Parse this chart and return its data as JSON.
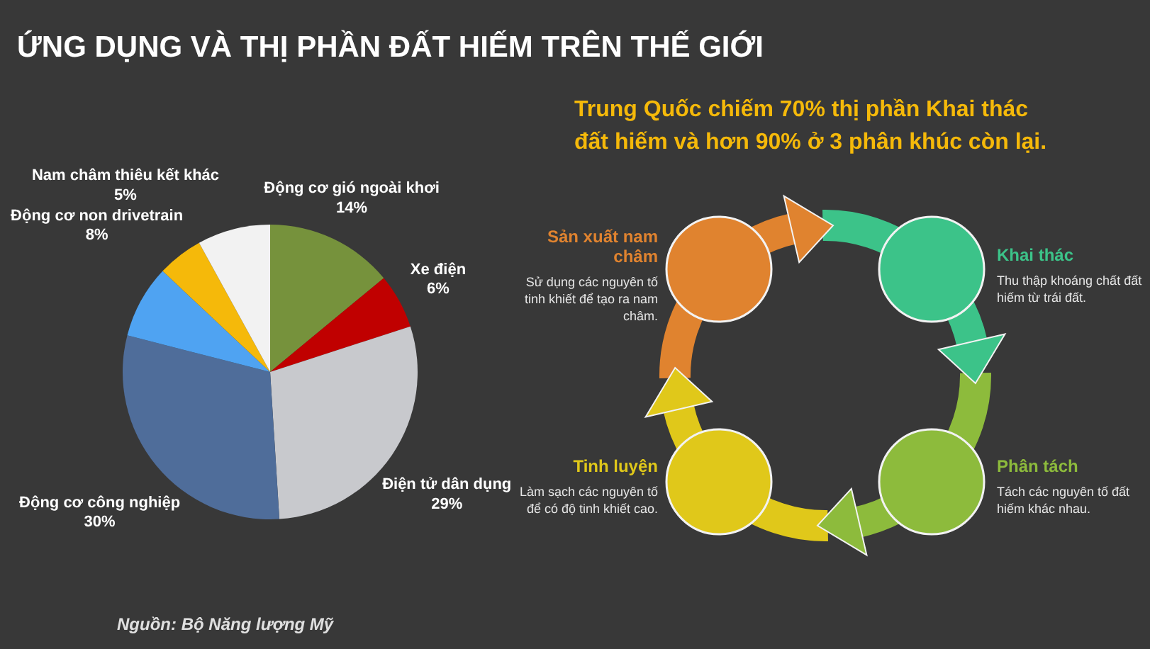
{
  "chart_data": [
    {
      "type": "pie",
      "title": "ỨNG DỤNG VÀ THỊ PHẦN ĐẤT HIẾM TRÊN THẾ GIỚI",
      "categories": [
        "Động cơ gió ngoài khơi",
        "Xe điện",
        "Điện tử dân dụng",
        "Động cơ công nghiệp",
        "Động cơ non drivetrain",
        "Nam châm thiêu kết khác",
        null
      ],
      "values": [
        14,
        6,
        29,
        30,
        8,
        5,
        8
      ],
      "colors": [
        "#76923c",
        "#c00000",
        "#c8c9cd",
        "#4f6d9a",
        "#4fa3f2",
        "#f5b90a",
        "#f2f2f2"
      ],
      "value_labels": [
        "14%",
        "6%",
        "29%",
        "30%",
        "8%",
        "5%",
        null
      ],
      "annotations": [
        "Nguồn: Bộ Năng lượng Mỹ"
      ]
    },
    {
      "type": "other",
      "title": "Trung Quốc chiếm 70% thị phần Khai thác đất hiếm và hơn 90% ở 3 phân khúc còn lại.",
      "categories": [
        "Khai thác",
        "Phân tách",
        "Tinh luyện",
        "Sản xuất nam châm"
      ],
      "annotations": [
        "Thu thập khoáng chất đất hiếm từ trái đất.",
        "Tách các nguyên tố đất hiếm khác nhau.",
        "Làm sạch các nguyên tố để có độ tinh khiết cao.",
        "Sử dụng các nguyên tố tinh khiết để tạo ra nam châm."
      ]
    }
  ]
}
